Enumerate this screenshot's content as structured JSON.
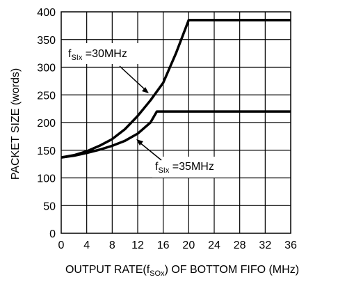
{
  "chart_data": {
    "type": "line",
    "title": "",
    "xlabel": {
      "pre": "OUTPUT RATE(f",
      "sub": "SOx",
      "post": ") OF BOTTOM FIFO (MHz)"
    },
    "ylabel": "PACKET SIZE (words)",
    "xlim": [
      0,
      36
    ],
    "ylim": [
      0,
      400
    ],
    "x_ticks": [
      "0",
      "4",
      "8",
      "12",
      "16",
      "20",
      "24",
      "28",
      "32",
      "36"
    ],
    "y_ticks": [
      "0",
      "50",
      "100",
      "150",
      "200",
      "250",
      "300",
      "350",
      "400"
    ],
    "grid": true,
    "legend": "none",
    "series": [
      {
        "name": "fSIx=30MHz",
        "label": {
          "pre": "f",
          "sub": "SIx",
          "post": " =30MHz"
        },
        "x": [
          0,
          2,
          4,
          6,
          8,
          10,
          12,
          14,
          16,
          18,
          20,
          36
        ],
        "values": [
          137,
          141,
          148,
          158,
          170,
          188,
          212,
          240,
          272,
          325,
          385,
          385
        ]
      },
      {
        "name": "fSIx=35MHz",
        "label": {
          "pre": "f",
          "sub": "SIx",
          "post": " =35MHz"
        },
        "x": [
          0,
          2,
          4,
          6,
          8,
          10,
          12,
          14,
          15,
          36
        ],
        "values": [
          137,
          140,
          145,
          151,
          158,
          167,
          180,
          200,
          220,
          220
        ]
      }
    ]
  }
}
